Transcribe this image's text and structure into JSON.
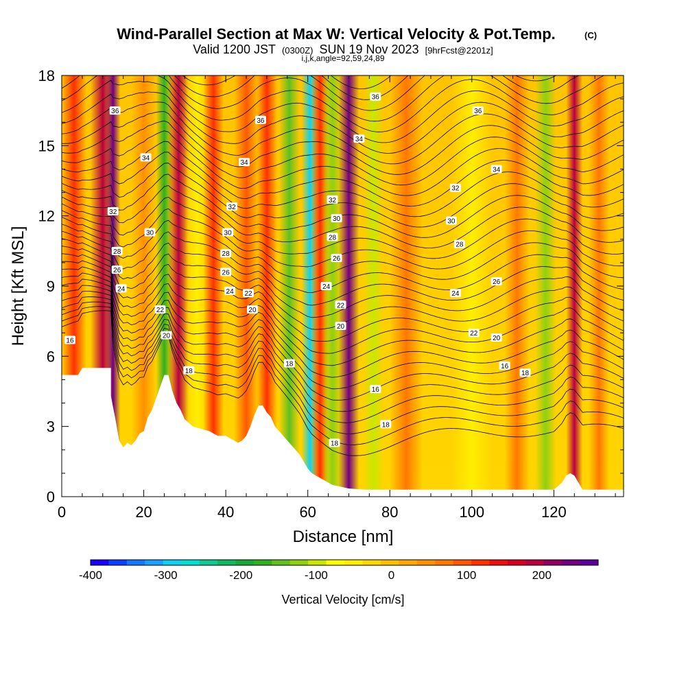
{
  "title": {
    "main": "Wind-Parallel Section at Max W: Vertical Velocity & Pot.Temp.",
    "copyright": "(C)",
    "valid_prefix": "Valid 1200 JST",
    "valid_utc": "(0300Z)",
    "valid_date": "SUN 19 Nov 2023",
    "forecast": "[9hrFcst@2201z]",
    "indices": "i,j,k,angle=92,59,24,89"
  },
  "axes": {
    "x_title": "Distance [nm]",
    "y_title": "Height [Kft MSL]"
  },
  "colorbar": {
    "title": "Vertical Velocity [cm/s]",
    "tick_labels": [
      "-400",
      "-300",
      "-200",
      "-100",
      "0",
      "100",
      "200"
    ],
    "tick_values": [
      -400,
      -300,
      -200,
      -100,
      0,
      100,
      200
    ],
    "colors": [
      "#1a00ff",
      "#0a40ff",
      "#1478ff",
      "#1aa0ff",
      "#10d0f0",
      "#00e0d0",
      "#10c890",
      "#10b860",
      "#18a838",
      "#30b020",
      "#60c020",
      "#90d010",
      "#c8e800",
      "#ffff00",
      "#ffee00",
      "#ffd800",
      "#ffc000",
      "#ffa800",
      "#ff9000",
      "#ff7800",
      "#ff5800",
      "#ff3000",
      "#ee1010",
      "#d80020",
      "#b80040",
      "#900060",
      "#700080",
      "#5a009a"
    ]
  },
  "chart_data": {
    "type": "heatmap",
    "title": "Wind-Parallel Section at Max W: Vertical Velocity & Pot.Temp.",
    "xlabel": "Distance [nm]",
    "ylabel": "Height [Kft MSL]",
    "xlim": [
      0,
      137
    ],
    "ylim": [
      0,
      18
    ],
    "x_ticks": [
      0,
      20,
      40,
      60,
      80,
      100,
      120
    ],
    "y_ticks": [
      0,
      3,
      6,
      9,
      12,
      15,
      18
    ],
    "colorbar_range": [
      -400,
      275
    ],
    "terrain_kft": {
      "x": [
        0,
        4,
        5,
        12,
        12,
        13,
        14,
        15,
        16,
        17,
        18,
        19,
        20,
        21,
        22,
        23,
        24,
        25,
        26,
        27,
        28,
        29,
        30,
        32,
        34,
        36,
        38,
        40,
        41,
        42,
        43,
        44,
        45,
        46,
        47,
        48,
        49,
        50,
        51,
        52,
        53,
        54,
        55,
        56,
        57,
        58,
        59,
        60,
        61,
        62,
        63,
        64,
        65,
        66,
        70,
        74,
        80,
        100,
        120,
        122,
        123,
        124,
        125,
        126,
        127,
        137
      ],
      "y": [
        5.2,
        5.2,
        5.5,
        5.5,
        4.3,
        3.4,
        2.4,
        2.1,
        2.3,
        2.2,
        2.4,
        2.7,
        2.8,
        3.4,
        3.7,
        4.2,
        4.7,
        5.2,
        5.2,
        4.5,
        4.0,
        3.7,
        3.3,
        3.0,
        2.9,
        2.8,
        2.6,
        2.6,
        2.5,
        2.4,
        2.3,
        2.4,
        2.6,
        3.0,
        3.5,
        3.9,
        3.9,
        3.6,
        3.4,
        3.0,
        2.8,
        2.6,
        2.4,
        2.2,
        2.0,
        1.8,
        1.5,
        1.2,
        1.0,
        0.9,
        0.8,
        0.7,
        0.6,
        0.5,
        0.35,
        0.3,
        0.3,
        0.3,
        0.3,
        0.6,
        0.9,
        1.0,
        0.9,
        0.6,
        0.3,
        0.3
      ]
    },
    "vertical_velocity_bands": [
      {
        "x": 3,
        "width": 3,
        "w": 110
      },
      {
        "x": 10,
        "width": 3,
        "w": 180
      },
      {
        "x": 12.5,
        "width": 1.8,
        "w": 250
      },
      {
        "x": 20,
        "width": 3,
        "w": 50
      },
      {
        "x": 25,
        "width": 2,
        "w": -160
      },
      {
        "x": 28.5,
        "width": 2.5,
        "w": 200
      },
      {
        "x": 33,
        "width": 3,
        "w": -60
      },
      {
        "x": 37,
        "width": 2.5,
        "w": 120
      },
      {
        "x": 45,
        "width": 3,
        "w": 90
      },
      {
        "x": 50,
        "width": 2.5,
        "w": 130
      },
      {
        "x": 55.5,
        "width": 2.5,
        "w": -150
      },
      {
        "x": 60.5,
        "width": 2,
        "w": -300
      },
      {
        "x": 63,
        "width": 2,
        "w": 120
      },
      {
        "x": 66,
        "width": 2.5,
        "w": -120
      },
      {
        "x": 70,
        "width": 2.5,
        "w": 230
      },
      {
        "x": 76,
        "width": 2.5,
        "w": -110
      },
      {
        "x": 84,
        "width": 4,
        "w": 60
      },
      {
        "x": 100,
        "width": 5,
        "w": -60
      },
      {
        "x": 111,
        "width": 3,
        "w": 80
      },
      {
        "x": 118,
        "width": 2.5,
        "w": -120
      },
      {
        "x": 125,
        "width": 2,
        "w": 200
      },
      {
        "x": 131,
        "width": 2.5,
        "w": 60
      }
    ],
    "potential_temperature_contours": {
      "label_interval": 2,
      "labels": [
        {
          "text": "16",
          "x": 2,
          "y": 6.7
        },
        {
          "text": "36",
          "x": 13,
          "y": 16.5
        },
        {
          "text": "34",
          "x": 20.5,
          "y": 14.5
        },
        {
          "text": "32",
          "x": 12.5,
          "y": 12.2
        },
        {
          "text": "30",
          "x": 21.5,
          "y": 11.3
        },
        {
          "text": "28",
          "x": 13.5,
          "y": 10.5
        },
        {
          "text": "26",
          "x": 13.5,
          "y": 9.7
        },
        {
          "text": "24",
          "x": 14.5,
          "y": 8.9
        },
        {
          "text": "22",
          "x": 24,
          "y": 8.0
        },
        {
          "text": "20",
          "x": 25.5,
          "y": 6.9
        },
        {
          "text": "18",
          "x": 31,
          "y": 5.4
        },
        {
          "text": "36",
          "x": 48.5,
          "y": 16.1
        },
        {
          "text": "34",
          "x": 44.5,
          "y": 14.3
        },
        {
          "text": "32",
          "x": 41.5,
          "y": 12.4
        },
        {
          "text": "30",
          "x": 40.5,
          "y": 11.3
        },
        {
          "text": "28",
          "x": 40,
          "y": 10.4
        },
        {
          "text": "26",
          "x": 40,
          "y": 9.6
        },
        {
          "text": "24",
          "x": 41,
          "y": 8.8
        },
        {
          "text": "22",
          "x": 45.5,
          "y": 8.7
        },
        {
          "text": "20",
          "x": 46.5,
          "y": 8.0
        },
        {
          "text": "18",
          "x": 55.5,
          "y": 5.7
        },
        {
          "text": "36",
          "x": 76.5,
          "y": 17.1
        },
        {
          "text": "34",
          "x": 72.5,
          "y": 15.3
        },
        {
          "text": "32",
          "x": 66,
          "y": 12.7
        },
        {
          "text": "30",
          "x": 67,
          "y": 11.9
        },
        {
          "text": "28",
          "x": 66,
          "y": 11.1
        },
        {
          "text": "26",
          "x": 67,
          "y": 10.2
        },
        {
          "text": "24",
          "x": 64.5,
          "y": 9.0
        },
        {
          "text": "22",
          "x": 68,
          "y": 8.2
        },
        {
          "text": "20",
          "x": 68,
          "y": 7.3
        },
        {
          "text": "18",
          "x": 66.5,
          "y": 2.3
        },
        {
          "text": "16",
          "x": 76.5,
          "y": 4.6
        },
        {
          "text": "18",
          "x": 79,
          "y": 3.1
        },
        {
          "text": "36",
          "x": 101.5,
          "y": 16.5
        },
        {
          "text": "34",
          "x": 106,
          "y": 14.0
        },
        {
          "text": "32",
          "x": 96,
          "y": 13.2
        },
        {
          "text": "30",
          "x": 95,
          "y": 11.8
        },
        {
          "text": "28",
          "x": 97,
          "y": 10.8
        },
        {
          "text": "26",
          "x": 106,
          "y": 9.2
        },
        {
          "text": "24",
          "x": 96,
          "y": 8.7
        },
        {
          "text": "22",
          "x": 100.5,
          "y": 7.0
        },
        {
          "text": "20",
          "x": 106,
          "y": 6.8
        },
        {
          "text": "16",
          "x": 108,
          "y": 5.6
        },
        {
          "text": "18",
          "x": 113,
          "y": 5.3
        }
      ]
    }
  }
}
